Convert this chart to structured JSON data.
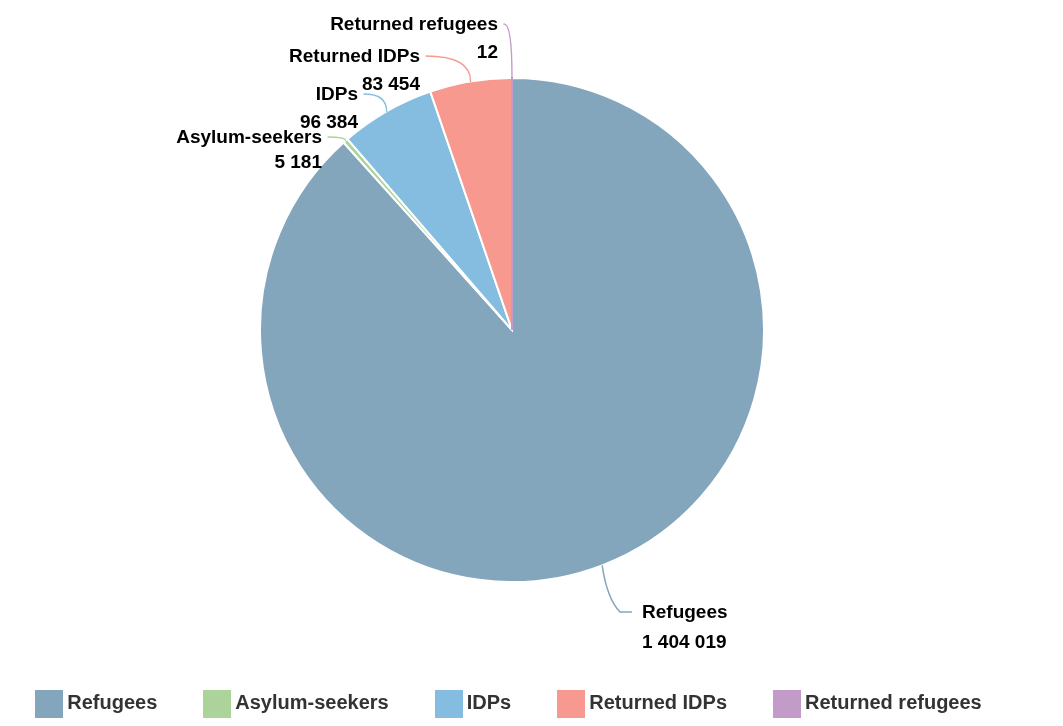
{
  "chart_data": {
    "type": "pie",
    "categories": [
      "Refugees",
      "Asylum-seekers",
      "IDPs",
      "Returned IDPs",
      "Returned refugees"
    ],
    "values": [
      1404019,
      5181,
      96384,
      83454,
      12
    ],
    "colors": [
      "#84a6bd",
      "#acd49a",
      "#85bde0",
      "#f8998f",
      "#c39bc8"
    ],
    "data_labels": true,
    "legend": "bottom"
  }
}
